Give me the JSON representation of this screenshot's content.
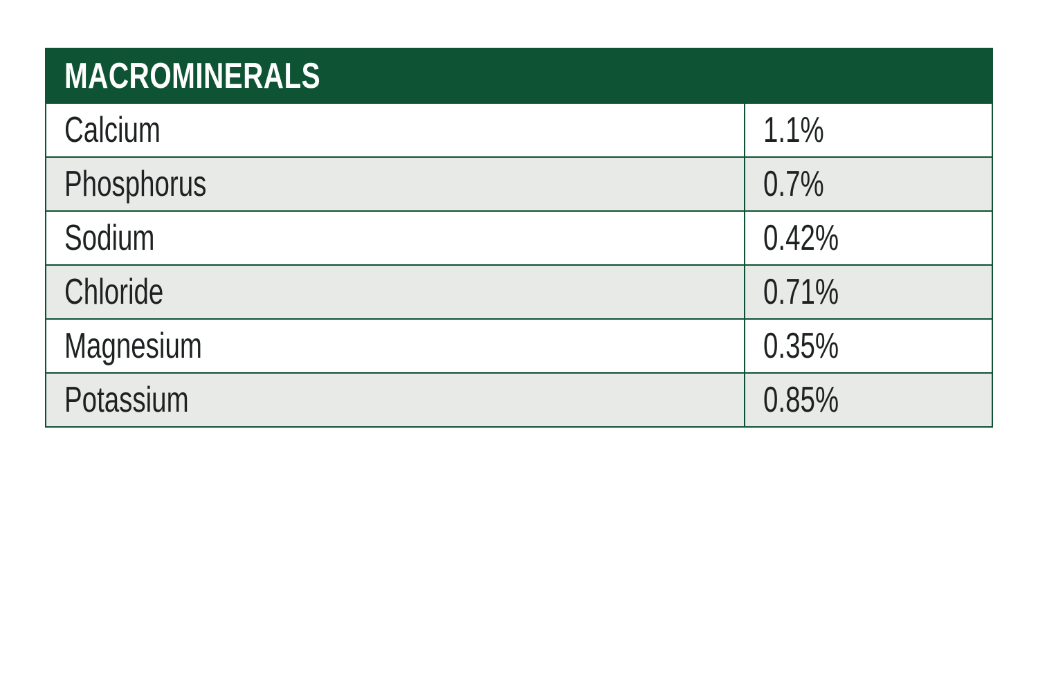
{
  "header": {
    "title": "MACROMINERALS"
  },
  "table": {
    "rows": [
      [
        "Calcium",
        "1.1%"
      ],
      [
        "Phosphorus",
        "0.7%"
      ],
      [
        "Sodium",
        "0.42%"
      ],
      [
        "Chloride",
        "0.71%"
      ],
      [
        "Magnesium",
        "0.35%"
      ],
      [
        "Potassium",
        "0.85%"
      ]
    ]
  }
}
